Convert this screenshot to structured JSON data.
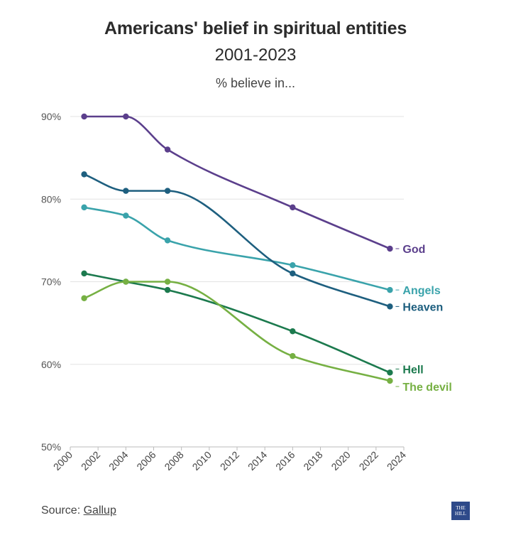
{
  "chart_data": {
    "type": "line",
    "title": "Americans' belief in spiritual entities",
    "subtitle": "2001-2023",
    "caption": "% believe in...",
    "xlim": [
      2000,
      2024
    ],
    "ylim": [
      50,
      90
    ],
    "x_ticks": [
      2000,
      2002,
      2004,
      2006,
      2008,
      2010,
      2012,
      2014,
      2016,
      2018,
      2020,
      2022,
      2024
    ],
    "y_ticks": [
      50,
      60,
      70,
      80,
      90
    ],
    "y_tick_format": "%",
    "grid": "horizontal",
    "legend": "direct labels at line ends",
    "series": [
      {
        "name": "God",
        "color": "#5b3f8c",
        "x": [
          2001,
          2004,
          2007,
          2016,
          2023
        ],
        "y": [
          90,
          90,
          86,
          79,
          74
        ]
      },
      {
        "name": "Angels",
        "color": "#3aa3ab",
        "x": [
          2001,
          2004,
          2007,
          2016,
          2023
        ],
        "y": [
          79,
          78,
          75,
          72,
          69
        ]
      },
      {
        "name": "Heaven",
        "color": "#1e5f7f",
        "x": [
          2001,
          2004,
          2007,
          2016,
          2023
        ],
        "y": [
          83,
          81,
          81,
          71,
          67
        ]
      },
      {
        "name": "Hell",
        "color": "#1c7a4e",
        "x": [
          2001,
          2004,
          2007,
          2016,
          2023
        ],
        "y": [
          71,
          70,
          69,
          64,
          59
        ]
      },
      {
        "name": "The devil",
        "color": "#76b043",
        "x": [
          2001,
          2004,
          2007,
          2016,
          2023
        ],
        "y": [
          68,
          70,
          70,
          61,
          58
        ]
      }
    ]
  },
  "footer": {
    "source_prefix": "Source: ",
    "source_name": "Gallup",
    "logo_text": "THE HILL"
  }
}
